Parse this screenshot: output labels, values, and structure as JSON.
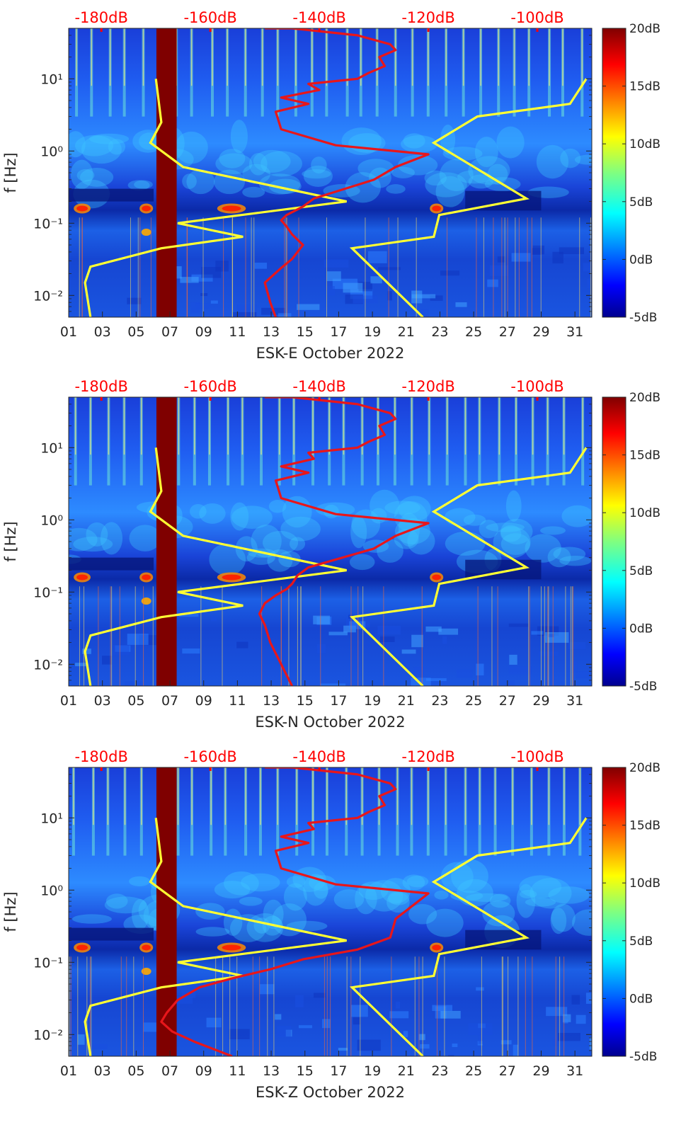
{
  "colors": {
    "noise_model_curves": "#ffff33",
    "psd_curve": "#e8161a",
    "top_axis_text": "#ff0000",
    "data_gap": "#7f0000"
  },
  "chart_data": [
    {
      "type": "heatmap",
      "station": "ESK-E",
      "xlabel": "ESK-E October 2022",
      "ylabel": "f [Hz]",
      "yscale": "log",
      "ylim": [
        0.005,
        50
      ],
      "xlim": [
        1,
        32
      ],
      "x_ticks": [
        "01",
        "03",
        "05",
        "07",
        "09",
        "11",
        "13",
        "15",
        "17",
        "19",
        "21",
        "23",
        "25",
        "27",
        "29",
        "31"
      ],
      "y_ticks": [
        "10⁻²",
        "10⁻¹",
        "10⁰",
        "10¹"
      ],
      "top_ticks": [
        "-180dB",
        "-160dB",
        "-140dB",
        "-120dB",
        "-100dB"
      ],
      "colorbar_ticks": [
        "-5dB",
        "0dB",
        "5dB",
        "10dB",
        "15dB",
        "20dB"
      ],
      "clim_db": [
        -5,
        20
      ],
      "data_gap_days": [
        6.2,
        7.4
      ],
      "model_curves_psd_vs_f": {
        "high_noise": [
          [
            -182,
            0.005
          ],
          [
            -183,
            0.015
          ],
          [
            -182,
            0.025
          ],
          [
            -169,
            0.045
          ],
          [
            -154,
            0.065
          ],
          [
            -166,
            0.1
          ],
          [
            -135,
            0.2
          ],
          [
            -165,
            0.6
          ],
          [
            -171,
            1.3
          ],
          [
            -169,
            2.5
          ],
          [
            -170,
            10
          ]
        ],
        "low_noise": [
          [
            -91,
            10
          ],
          [
            -94,
            4.5
          ],
          [
            -111,
            3.0
          ],
          [
            -119,
            1.3
          ],
          [
            -102,
            0.22
          ],
          [
            -118,
            0.13
          ],
          [
            -119,
            0.065
          ],
          [
            -134,
            0.045
          ],
          [
            -121,
            0.005
          ]
        ]
      },
      "psd_curve": {
        "db": [
          -148,
          -149,
          -150,
          -147,
          -145,
          -144,
          -143,
          -145,
          -146,
          -147,
          -146,
          -143,
          -141,
          -130,
          -126,
          -120,
          -137,
          -147,
          -148,
          -142,
          -147,
          -140,
          -142,
          -133,
          -131,
          -128,
          -129,
          -126,
          -127,
          -133,
          -145,
          -150
        ],
        "f": [
          0.005,
          0.008,
          0.015,
          0.024,
          0.032,
          0.04,
          0.05,
          0.07,
          0.09,
          0.11,
          0.13,
          0.17,
          0.22,
          0.4,
          0.6,
          0.9,
          1.2,
          2,
          3.5,
          4.5,
          5.5,
          7,
          8.5,
          10,
          12,
          15,
          20,
          25,
          30,
          40,
          50,
          50
        ]
      }
    },
    {
      "type": "heatmap",
      "station": "ESK-N",
      "xlabel": "ESK-N October 2022",
      "ylabel": "f [Hz]",
      "yscale": "log",
      "ylim": [
        0.005,
        50
      ],
      "xlim": [
        1,
        32
      ],
      "x_ticks": [
        "01",
        "03",
        "05",
        "07",
        "09",
        "11",
        "13",
        "15",
        "17",
        "19",
        "21",
        "23",
        "25",
        "27",
        "29",
        "31"
      ],
      "y_ticks": [
        "10⁻²",
        "10⁻¹",
        "10⁰",
        "10¹"
      ],
      "top_ticks": [
        "-180dB",
        "-160dB",
        "-140dB",
        "-120dB",
        "-100dB"
      ],
      "colorbar_ticks": [
        "-5dB",
        "0dB",
        "5dB",
        "10dB",
        "15dB",
        "20dB"
      ],
      "clim_db": [
        -5,
        20
      ],
      "data_gap_days": [
        6.2,
        7.4
      ],
      "model_curves_psd_vs_f": {
        "high_noise": [
          [
            -182,
            0.005
          ],
          [
            -183,
            0.015
          ],
          [
            -182,
            0.025
          ],
          [
            -169,
            0.045
          ],
          [
            -154,
            0.065
          ],
          [
            -166,
            0.1
          ],
          [
            -135,
            0.2
          ],
          [
            -165,
            0.6
          ],
          [
            -171,
            1.3
          ],
          [
            -169,
            2.5
          ],
          [
            -170,
            10
          ]
        ],
        "low_noise": [
          [
            -91,
            10
          ],
          [
            -94,
            4.5
          ],
          [
            -111,
            3.0
          ],
          [
            -119,
            1.3
          ],
          [
            -102,
            0.22
          ],
          [
            -118,
            0.13
          ],
          [
            -119,
            0.065
          ],
          [
            -134,
            0.045
          ],
          [
            -121,
            0.005
          ]
        ]
      },
      "psd_curve": {
        "db": [
          -145,
          -147,
          -149,
          -150,
          -151,
          -150,
          -148,
          -146,
          -145,
          -144,
          -142,
          -130,
          -126,
          -120,
          -137,
          -147,
          -148,
          -142,
          -147,
          -141,
          -142,
          -133,
          -131,
          -128,
          -129,
          -126,
          -127,
          -133,
          -145,
          -150
        ],
        "f": [
          0.005,
          0.01,
          0.02,
          0.035,
          0.05,
          0.07,
          0.09,
          0.11,
          0.13,
          0.17,
          0.22,
          0.4,
          0.6,
          0.9,
          1.2,
          2,
          3.5,
          4.5,
          5.5,
          7,
          8.5,
          10,
          12,
          15,
          20,
          25,
          30,
          40,
          50,
          50
        ]
      }
    },
    {
      "type": "heatmap",
      "station": "ESK-Z",
      "xlabel": "ESK-Z October 2022",
      "ylabel": "f [Hz]",
      "yscale": "log",
      "ylim": [
        0.005,
        50
      ],
      "xlim": [
        1,
        32
      ],
      "x_ticks": [
        "01",
        "03",
        "05",
        "07",
        "09",
        "11",
        "13",
        "15",
        "17",
        "19",
        "21",
        "23",
        "25",
        "27",
        "29",
        "31"
      ],
      "y_ticks": [
        "10⁻²",
        "10⁻¹",
        "10⁰",
        "10¹"
      ],
      "top_ticks": [
        "-180dB",
        "-160dB",
        "-140dB",
        "-120dB",
        "-100dB"
      ],
      "colorbar_ticks": [
        "-5dB",
        "0dB",
        "5dB",
        "10dB",
        "15dB",
        "20dB"
      ],
      "clim_db": [
        -5,
        20
      ],
      "data_gap_days": [
        6.2,
        7.4
      ],
      "model_curves_psd_vs_f": {
        "high_noise": [
          [
            -182,
            0.005
          ],
          [
            -183,
            0.015
          ],
          [
            -182,
            0.025
          ],
          [
            -169,
            0.045
          ],
          [
            -154,
            0.065
          ],
          [
            -166,
            0.1
          ],
          [
            -135,
            0.2
          ],
          [
            -165,
            0.6
          ],
          [
            -171,
            1.3
          ],
          [
            -169,
            2.5
          ],
          [
            -170,
            10
          ]
        ],
        "low_noise": [
          [
            -91,
            10
          ],
          [
            -94,
            4.5
          ],
          [
            -111,
            3.0
          ],
          [
            -119,
            1.3
          ],
          [
            -102,
            0.22
          ],
          [
            -118,
            0.13
          ],
          [
            -119,
            0.065
          ],
          [
            -134,
            0.045
          ],
          [
            -121,
            0.005
          ]
        ]
      },
      "psd_curve": {
        "db": [
          -156,
          -163,
          -167,
          -169,
          -168,
          -166,
          -162,
          -156,
          -149,
          -143,
          -133,
          -127,
          -126,
          -120,
          -137,
          -147,
          -148,
          -142,
          -147,
          -141,
          -142,
          -133,
          -131,
          -128,
          -129,
          -126,
          -127,
          -133,
          -145,
          -150
        ],
        "f": [
          0.005,
          0.008,
          0.011,
          0.015,
          0.02,
          0.03,
          0.045,
          0.06,
          0.08,
          0.11,
          0.15,
          0.22,
          0.4,
          0.9,
          1.2,
          2,
          3.5,
          4.5,
          5.5,
          7,
          8.5,
          10,
          12,
          15,
          20,
          25,
          30,
          40,
          50,
          50
        ]
      }
    }
  ]
}
